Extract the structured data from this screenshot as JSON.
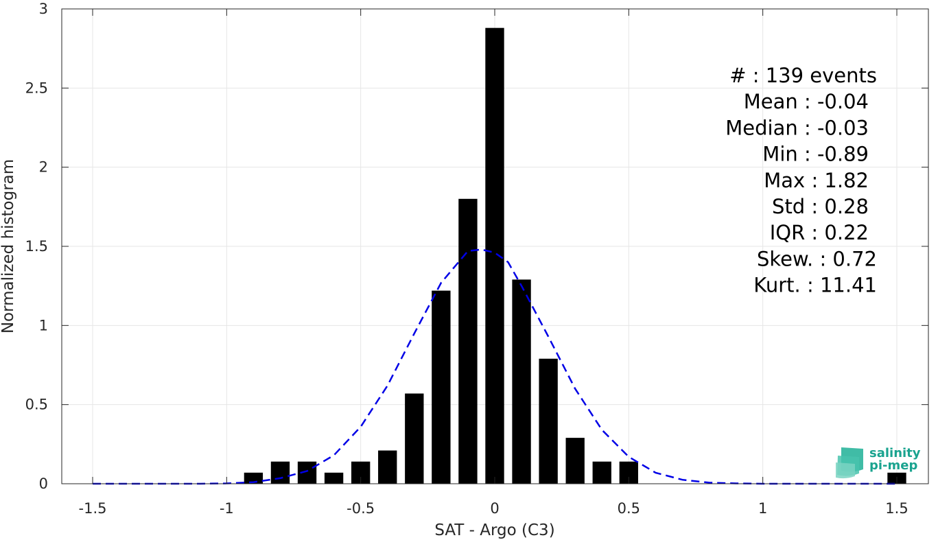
{
  "chart_data": {
    "type": "bar",
    "title": "",
    "xlabel": "SAT - Argo (C3)",
    "ylabel": "Normalized histogram",
    "xlim": [
      -1.5,
      1.5
    ],
    "ylim": [
      0,
      3
    ],
    "grid": true,
    "xticks": [
      -1.5,
      -1,
      -0.5,
      0,
      0.5,
      1,
      1.5
    ],
    "xtick_labels": [
      "-1.5",
      "-1",
      "-0.5",
      "0",
      "0.5",
      "1",
      "1.5"
    ],
    "yticks": [
      0,
      0.5,
      1,
      1.5,
      2,
      2.5,
      3
    ],
    "ytick_labels": [
      "0",
      "0.5",
      "1",
      "1.5",
      "2",
      "2.5",
      "3"
    ],
    "bar_width": 0.07,
    "bars": {
      "x": [
        -0.9,
        -0.8,
        -0.7,
        -0.6,
        -0.5,
        -0.4,
        -0.3,
        -0.2,
        -0.1,
        0.0,
        0.1,
        0.2,
        0.3,
        0.4,
        0.5,
        1.5
      ],
      "values": [
        0.07,
        0.14,
        0.14,
        0.07,
        0.14,
        0.21,
        0.57,
        1.22,
        1.8,
        2.88,
        1.29,
        0.79,
        0.29,
        0.14,
        0.14,
        0.07
      ]
    },
    "fit_curve": {
      "style": "dashed",
      "color": "#0000e6",
      "x": [
        -1.5,
        -1.4,
        -1.3,
        -1.2,
        -1.1,
        -1.0,
        -0.9,
        -0.8,
        -0.7,
        -0.6,
        -0.5,
        -0.4,
        -0.3,
        -0.2,
        -0.1,
        -0.05,
        0.0,
        0.05,
        0.1,
        0.2,
        0.3,
        0.4,
        0.5,
        0.6,
        0.7,
        0.8,
        0.9,
        1.0,
        1.1,
        1.2,
        1.3,
        1.4,
        1.5
      ],
      "y": [
        0.0,
        0.0,
        0.0,
        0.0,
        0.0,
        0.002,
        0.01,
        0.035,
        0.08,
        0.18,
        0.36,
        0.62,
        0.95,
        1.27,
        1.47,
        1.48,
        1.46,
        1.4,
        1.25,
        0.93,
        0.6,
        0.34,
        0.17,
        0.07,
        0.025,
        0.007,
        0.002,
        0.0,
        0.0,
        0.0,
        0.0,
        0.0,
        0.0
      ]
    },
    "bar_color": "#000000",
    "stats_lines": [
      "#  : 139 events",
      "Mean : -0.04",
      "Median : -0.03",
      "Min : -0.89",
      "Max : 1.82",
      "Std : 0.28",
      "IQR : 0.22",
      "Skew. : 0.72",
      "Kurt. : 11.41"
    ]
  },
  "logo": {
    "line1": "salinity",
    "line2": "pi-mep",
    "color": "#1aa38f"
  }
}
